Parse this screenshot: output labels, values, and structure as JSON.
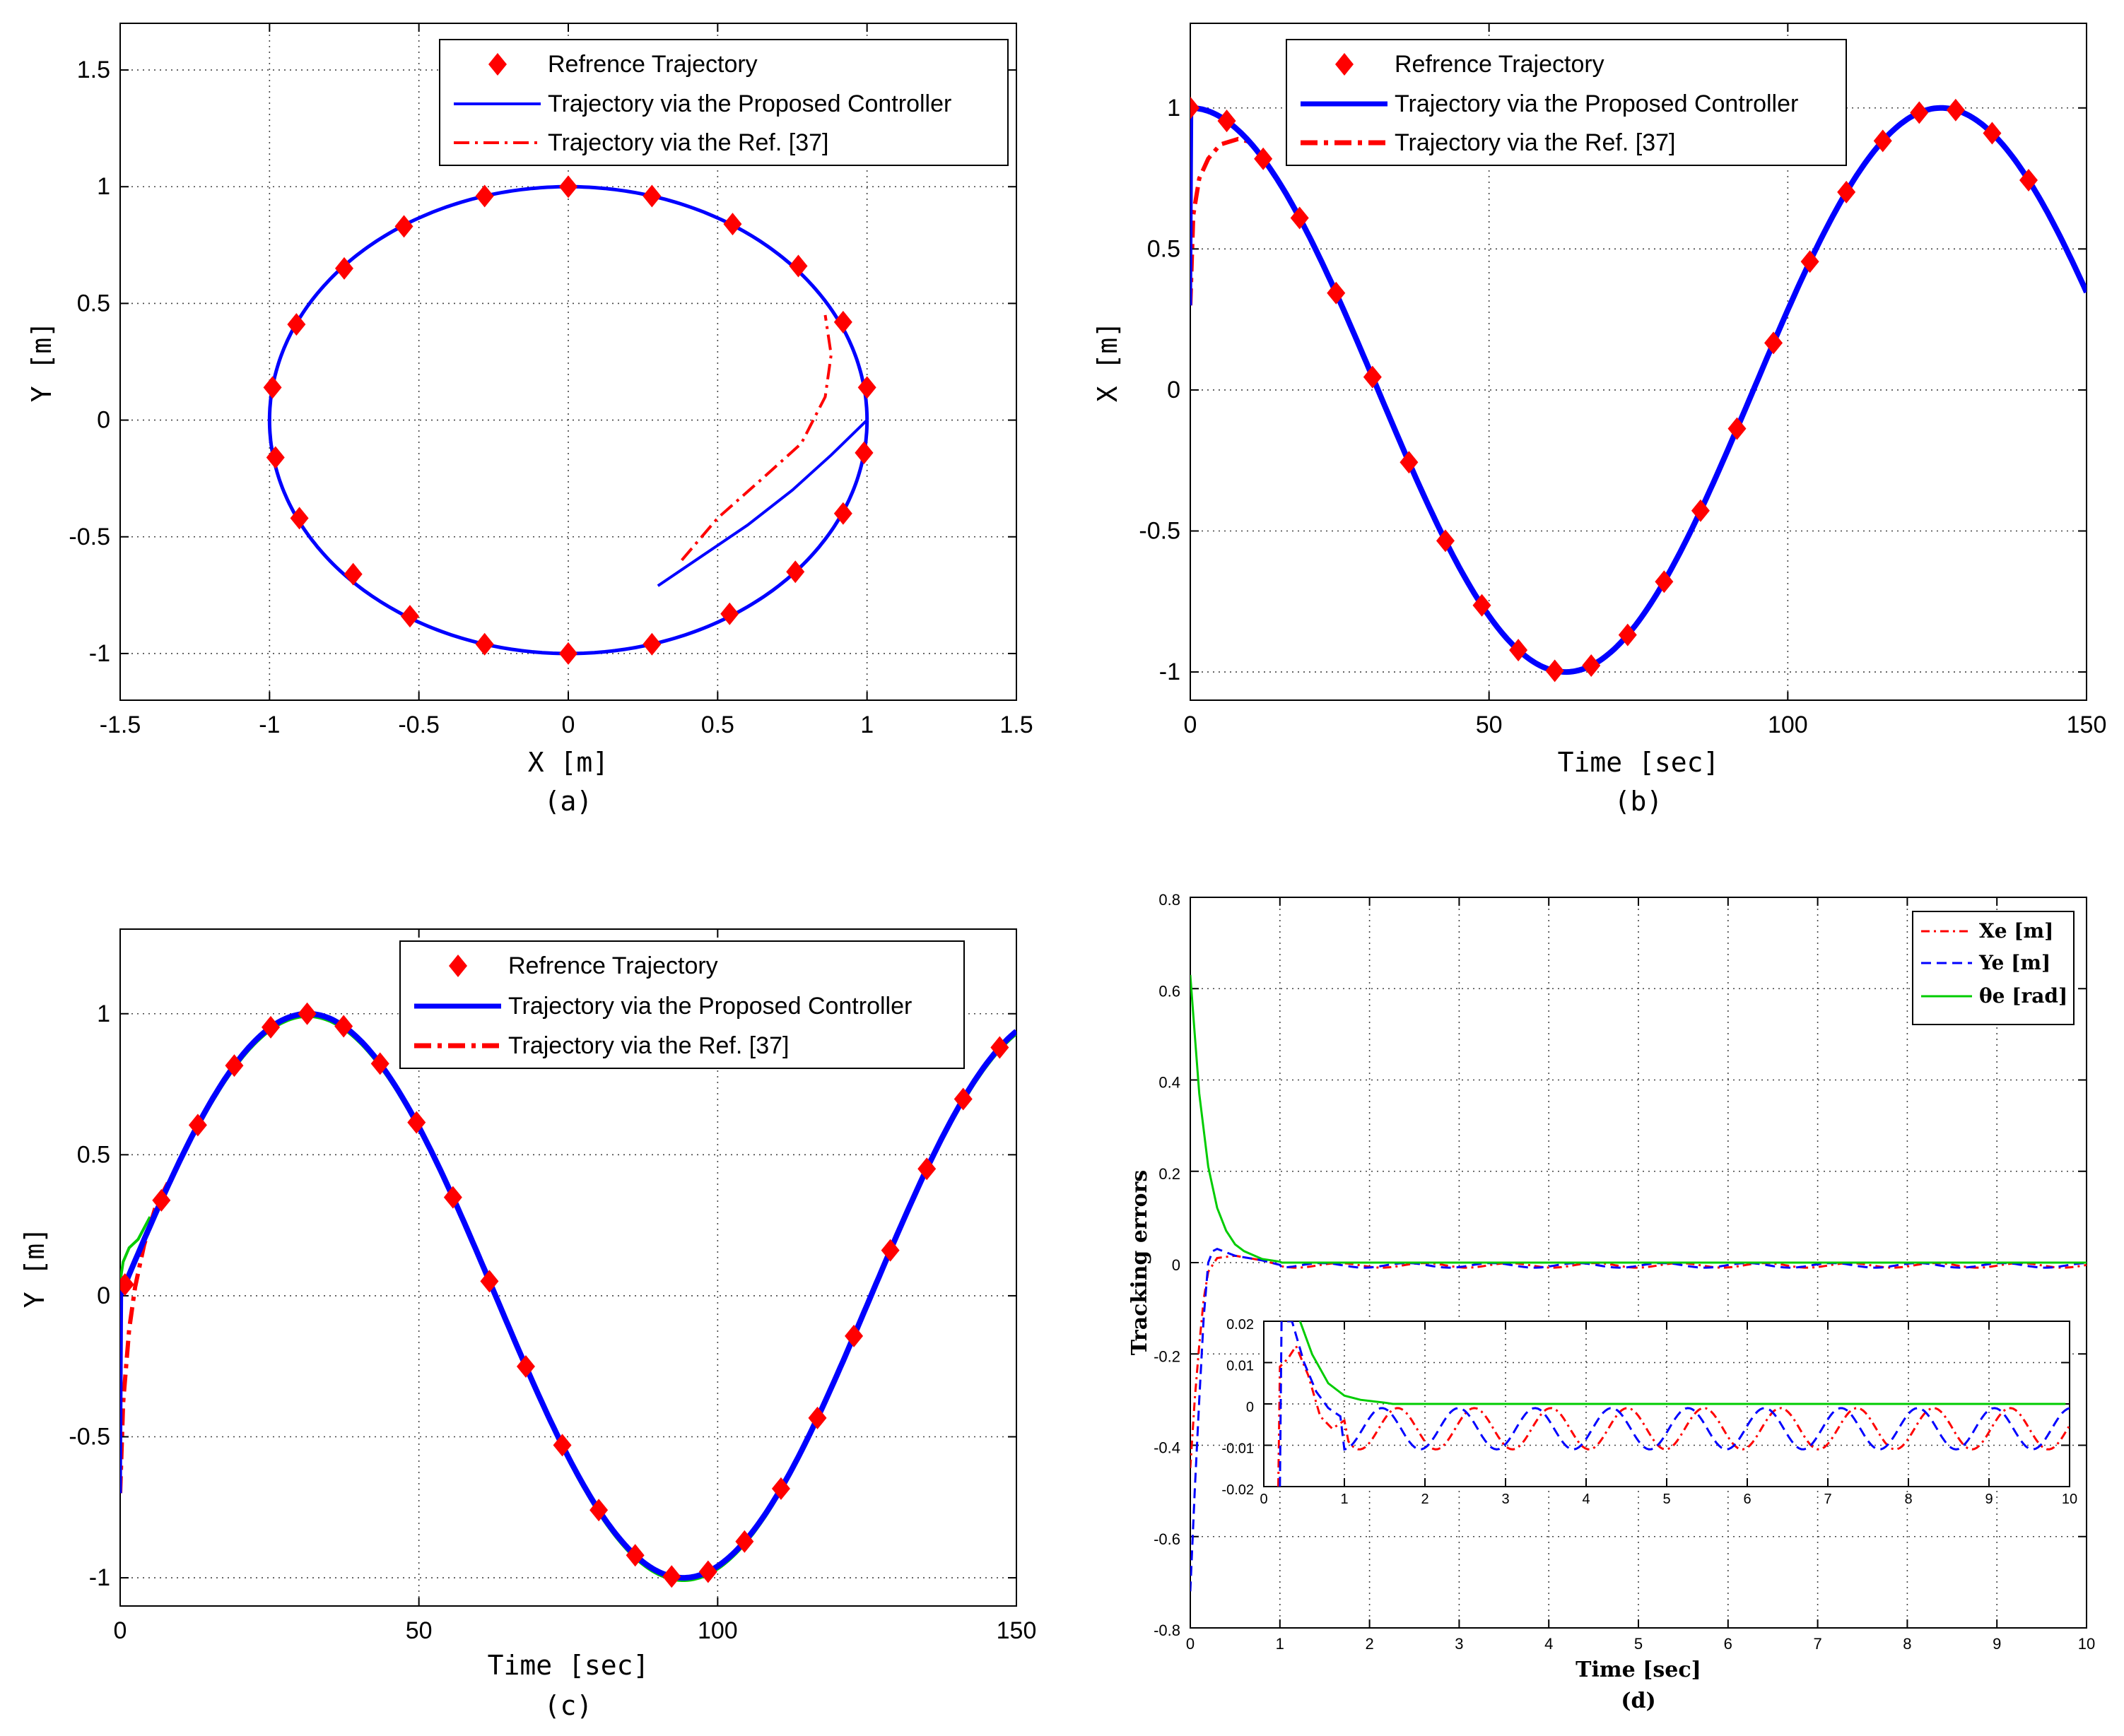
{
  "colors": {
    "ref": "#ff0000",
    "proposed": "#0000ff",
    "ref37": "#ff0000",
    "xe": "#ff0000",
    "ye": "#0000ff",
    "theta": "#00cc00",
    "grid": "#444444"
  },
  "chart_data": [
    {
      "id": "a",
      "type": "line",
      "caption": "(a)",
      "xlabel": "X [m]",
      "ylabel": "Y [m]",
      "xlim": [
        -1.5,
        1.5
      ],
      "ylim": [
        -1.2,
        1.7
      ],
      "xticks": [
        -1.5,
        -1,
        -0.5,
        0,
        0.5,
        1,
        1.5
      ],
      "xtick_labels": [
        "-1.5",
        "-1",
        "-0.5",
        "0",
        "0.5",
        "1",
        "1.5"
      ],
      "yticks": [
        -1,
        -0.5,
        0,
        0.5,
        1,
        1.5
      ],
      "ytick_labels": [
        "-1",
        "-0.5",
        "0",
        "0.5",
        "1",
        "1.5"
      ],
      "legend": [
        "Refrence Trajectory",
        "Trajectory via the Proposed Controller",
        "Trajectory via the Ref. [37]"
      ],
      "legend_position": "top-right",
      "reference_markers": {
        "x": [
          1.0,
          0.99,
          0.92,
          0.77,
          0.55,
          0.28,
          0.0,
          -0.28,
          -0.55,
          -0.75,
          -0.91,
          -0.99,
          -0.98,
          -0.9,
          -0.72,
          -0.53,
          -0.28,
          0.0,
          0.28,
          0.54,
          0.76,
          0.92,
          0.99
        ],
        "y": [
          0.14,
          -0.14,
          0.42,
          0.66,
          0.84,
          0.96,
          1.0,
          0.96,
          0.83,
          0.65,
          0.41,
          0.14,
          -0.16,
          -0.42,
          -0.66,
          -0.84,
          -0.96,
          -1.0,
          -0.96,
          -0.83,
          -0.65,
          -0.4,
          -0.14
        ]
      },
      "proposed_transient": {
        "x": [
          0.3,
          0.45,
          0.6,
          0.75,
          0.88,
          1.0
        ],
        "y": [
          -0.71,
          -0.58,
          -0.45,
          -0.3,
          -0.15,
          0.0
        ]
      },
      "ref37_transient": {
        "x": [
          0.38,
          0.5,
          0.65,
          0.78,
          0.86,
          0.88,
          0.86
        ],
        "y": [
          -0.6,
          -0.42,
          -0.25,
          -0.1,
          0.1,
          0.28,
          0.45
        ]
      }
    },
    {
      "id": "b",
      "type": "line",
      "caption": "(b)",
      "xlabel": "Time [sec]",
      "ylabel": "X [m]",
      "xlim": [
        0,
        150
      ],
      "ylim": [
        -1.1,
        1.3
      ],
      "xticks": [
        0,
        50,
        100,
        150
      ],
      "xtick_labels": [
        "0",
        "50",
        "100",
        "150"
      ],
      "yticks": [
        -1,
        -0.5,
        0,
        0.5,
        1
      ],
      "ytick_labels": [
        "-1",
        "-0.5",
        "0",
        "0.5",
        "1"
      ],
      "legend": [
        "Refrence Trajectory",
        "Trajectory via the Proposed Controller",
        "Trajectory via the Ref. [37]"
      ],
      "legend_position": "top-left",
      "signal": "X = cos(0.05 t)",
      "ref37_transient": {
        "x": [
          0,
          0.5,
          1.5,
          3,
          5,
          8,
          10
        ],
        "y": [
          0.3,
          0.62,
          0.75,
          0.82,
          0.87,
          0.89,
          0.88
        ]
      }
    },
    {
      "id": "c",
      "type": "line",
      "caption": "(c)",
      "xlabel": "Time [sec]",
      "ylabel": "Y [m]",
      "xlim": [
        0,
        150
      ],
      "ylim": [
        -1.1,
        1.3
      ],
      "xticks": [
        0,
        50,
        100,
        150
      ],
      "xtick_labels": [
        "0",
        "50",
        "100",
        "150"
      ],
      "yticks": [
        -1,
        -0.5,
        0,
        0.5,
        1
      ],
      "ytick_labels": [
        "-1",
        "-0.5",
        "0",
        "0.5",
        "1"
      ],
      "legend": [
        "Refrence Trajectory",
        "Trajectory via the Proposed Controller",
        "Trajectory via the Ref. [37]"
      ],
      "legend_position": "top-center",
      "signal": "Y = sin(0.05 t)",
      "ref37_transient": {
        "x": [
          0,
          0.5,
          1.5,
          2.5,
          4,
          6,
          8
        ],
        "y": [
          -0.7,
          -0.38,
          -0.12,
          0.03,
          0.18,
          0.32,
          0.4
        ]
      },
      "green_transient": {
        "x": [
          0,
          0.5,
          1.5,
          3,
          5
        ],
        "y": [
          0.05,
          0.12,
          0.17,
          0.2,
          0.28
        ]
      }
    },
    {
      "id": "d",
      "type": "line",
      "caption": "(d)",
      "xlabel": "Time [sec]",
      "ylabel": "Tracking errors",
      "xlim": [
        0,
        10
      ],
      "ylim": [
        -0.8,
        0.8
      ],
      "xticks": [
        0,
        1,
        2,
        3,
        4,
        5,
        6,
        7,
        8,
        9,
        10
      ],
      "xtick_labels": [
        "0",
        "1",
        "2",
        "3",
        "4",
        "5",
        "6",
        "7",
        "8",
        "9",
        "10"
      ],
      "yticks": [
        -0.8,
        -0.6,
        -0.4,
        -0.2,
        0,
        0.2,
        0.4,
        0.6,
        0.8
      ],
      "ytick_labels": [
        "-0.8",
        "-0.6",
        "-0.4",
        "-0.2",
        "0",
        "0.2",
        "0.4",
        "0.6",
        "0.8"
      ],
      "legend": [
        "Xe [m]",
        "Ye [m]",
        "θe [rad]"
      ],
      "legend_position": "top-right",
      "series": [
        {
          "name": "Xe [m]",
          "x": [
            0,
            0.05,
            0.1,
            0.15,
            0.2,
            0.3,
            0.5,
            0.8,
            1.0
          ],
          "y": [
            -0.45,
            -0.3,
            -0.18,
            -0.08,
            -0.02,
            0.01,
            0.015,
            0.005,
            -0.005
          ]
        },
        {
          "name": "Ye [m]",
          "x": [
            0,
            0.05,
            0.1,
            0.15,
            0.2,
            0.25,
            0.3,
            0.5,
            0.8,
            1.0
          ],
          "y": [
            -0.72,
            -0.5,
            -0.3,
            -0.12,
            0.0,
            0.025,
            0.03,
            0.015,
            0.005,
            -0.005
          ]
        },
        {
          "name": "θe [rad]",
          "x": [
            0,
            0.05,
            0.1,
            0.2,
            0.3,
            0.4,
            0.5,
            0.6,
            0.8,
            1.0
          ],
          "y": [
            0.63,
            0.5,
            0.37,
            0.21,
            0.12,
            0.07,
            0.04,
            0.025,
            0.008,
            0.002
          ]
        }
      ],
      "steady_oscillation_amplitude": 0.01,
      "inset": {
        "xlim": [
          0,
          10
        ],
        "ylim": [
          -0.02,
          0.02
        ],
        "xticks": [
          0,
          1,
          2,
          3,
          4,
          5,
          6,
          7,
          8,
          9,
          10
        ],
        "xtick_labels": [
          "0",
          "1",
          "2",
          "3",
          "4",
          "5",
          "6",
          "7",
          "8",
          "9",
          "10"
        ],
        "yticks": [
          -0.02,
          -0.01,
          0,
          0.01,
          0.02
        ],
        "ytick_labels": [
          "-0.02",
          "-0.01",
          "0",
          "0.01",
          "0.02"
        ]
      }
    }
  ]
}
